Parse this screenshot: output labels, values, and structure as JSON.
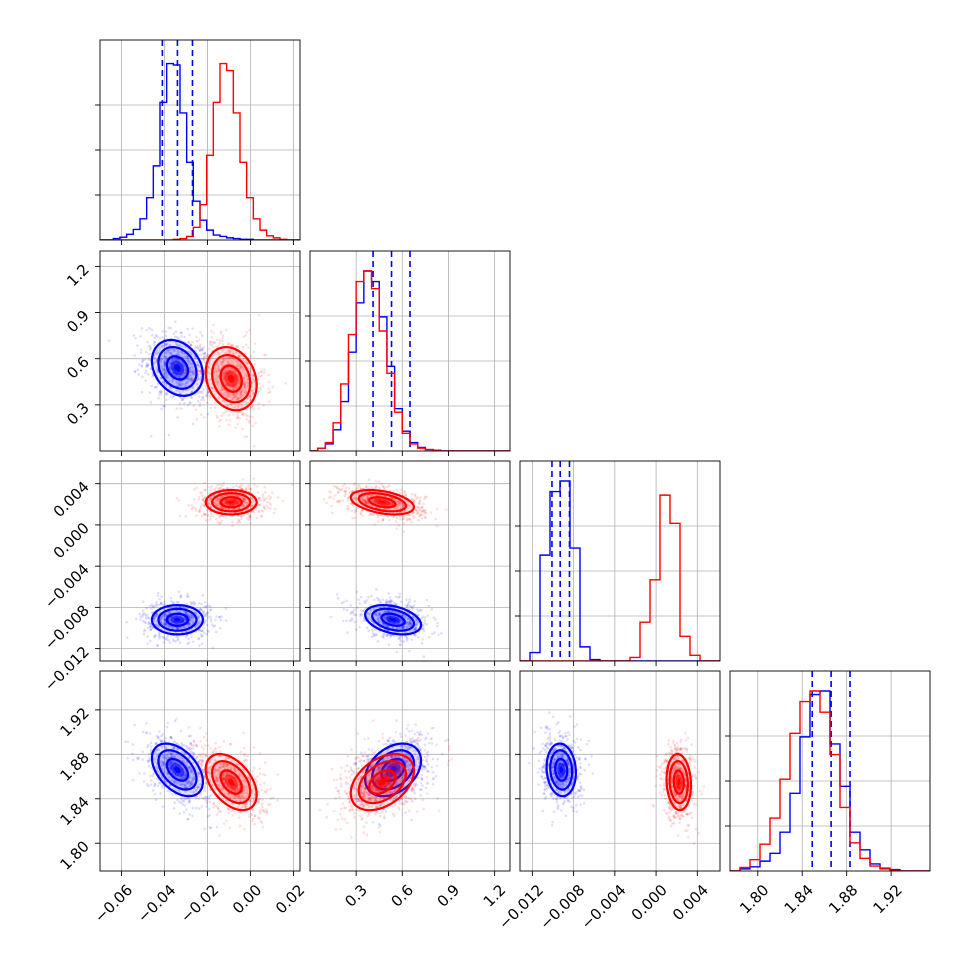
{
  "chart_data": {
    "type": "corner",
    "grid": true,
    "colors": {
      "series_a": "#0000ff",
      "series_b": "#ff0000"
    },
    "parameters": [
      {
        "range": [
          -0.07,
          0.023
        ],
        "ticks": [
          -0.06,
          -0.04,
          -0.02,
          0.0,
          0.02
        ],
        "tick_labels": [
          "−0.06",
          "−0.04",
          "−0.02",
          "0.00",
          "0.02"
        ]
      },
      {
        "range": [
          0.0,
          1.3
        ],
        "ticks": [
          0.3,
          0.6,
          0.9,
          1.2
        ],
        "tick_labels": [
          "0.3",
          "0.6",
          "0.9",
          "1.2"
        ]
      },
      {
        "range": [
          -0.0132,
          0.0062
        ],
        "ticks": [
          -0.012,
          -0.008,
          -0.004,
          0.0,
          0.004
        ],
        "tick_labels": [
          "−0.012",
          "−0.008",
          "−0.004",
          "0.000",
          "0.004"
        ]
      },
      {
        "range": [
          1.775,
          1.955
        ],
        "ticks": [
          1.8,
          1.84,
          1.88,
          1.92
        ],
        "tick_labels": [
          "1.80",
          "1.84",
          "1.88",
          "1.92"
        ]
      }
    ],
    "series": [
      {
        "color": "#0000ff",
        "mean": [
          -0.034,
          0.54,
          -0.0092,
          1.866
        ],
        "std": [
          0.0075,
          0.115,
          0.0009,
          0.015
        ],
        "corr": [
          [
            0,
            1,
            -0.25
          ],
          [
            0,
            3,
            -0.45
          ],
          [
            1,
            2,
            -0.35
          ],
          [
            1,
            3,
            0.35
          ],
          [
            2,
            3,
            -0.1
          ]
        ],
        "quantiles": [
          [
            -0.041,
            -0.034,
            -0.027
          ],
          [
            0.41,
            0.53,
            0.65
          ],
          [
            -0.0101,
            -0.0093,
            -0.0084
          ],
          [
            1.849,
            1.866,
            1.883
          ]
        ],
        "histograms": [
          {
            "edges": [
              -0.07,
              0.023
            ],
            "counts": [
              0,
              0,
              2,
              4,
              8,
              15,
              30,
              60,
              105,
              195,
              250,
              248,
              180,
              110,
              55,
              28,
              14,
              7,
              5,
              3,
              2,
              1,
              1,
              0,
              0,
              0,
              0,
              0,
              0,
              0
            ]
          },
          {
            "edges": [
              0.0,
              1.3
            ],
            "counts": [
              0,
              4,
              10,
              30,
              70,
              140,
              210,
              255,
              240,
              190,
              120,
              60,
              28,
              12,
              5,
              2,
              1,
              0,
              0,
              0,
              0,
              0,
              0,
              0,
              0,
              0
            ]
          },
          {
            "edges": [
              -0.0132,
              0.0062
            ],
            "counts": [
              0,
              12,
              150,
              240,
              255,
              160,
              20,
              2,
              0,
              0,
              0,
              0,
              0,
              0,
              0,
              0,
              0,
              0,
              0,
              0
            ]
          },
          {
            "edges": [
              1.775,
              1.955
            ],
            "counts": [
              0,
              3,
              6,
              14,
              25,
              55,
              110,
              190,
              250,
              255,
              180,
              120,
              55,
              30,
              10,
              4,
              2,
              0,
              0,
              0
            ]
          }
        ]
      },
      {
        "color": "#ff0000",
        "mean": [
          -0.009,
          0.47,
          0.0022,
          1.855
        ],
        "std": [
          0.0075,
          0.13,
          0.00075,
          0.016
        ],
        "corr": [
          [
            0,
            1,
            -0.2
          ],
          [
            0,
            3,
            -0.45
          ],
          [
            1,
            2,
            -0.4
          ],
          [
            1,
            3,
            0.4
          ],
          [
            2,
            3,
            -0.1
          ]
        ],
        "quantiles": [],
        "histograms": [
          {
            "edges": [
              -0.07,
              0.023
            ],
            "counts": [
              0,
              0,
              0,
              0,
              0,
              0,
              0,
              0,
              0,
              0,
              0,
              1,
              2,
              5,
              18,
              50,
              120,
              195,
              250,
              240,
              180,
              110,
              60,
              30,
              14,
              6,
              3,
              1,
              0,
              0
            ]
          },
          {
            "edges": [
              0.0,
              1.3
            ],
            "counts": [
              0,
              4,
              12,
              40,
              95,
              165,
              240,
              255,
              230,
              170,
              110,
              55,
              25,
              10,
              4,
              2,
              1,
              0,
              0,
              0,
              0,
              0,
              0,
              0,
              0,
              0
            ]
          },
          {
            "edges": [
              -0.0132,
              0.0062
            ],
            "counts": [
              0,
              0,
              0,
              0,
              0,
              0,
              0,
              0,
              0,
              0,
              0,
              5,
              55,
              115,
              235,
              195,
              35,
              8,
              0,
              0
            ]
          },
          {
            "edges": [
              1.775,
              1.955
            ],
            "counts": [
              0,
              5,
              16,
              38,
              75,
              130,
              195,
              240,
              255,
              225,
              165,
              90,
              40,
              18,
              7,
              3,
              1,
              0,
              0,
              0
            ]
          }
        ]
      }
    ]
  }
}
